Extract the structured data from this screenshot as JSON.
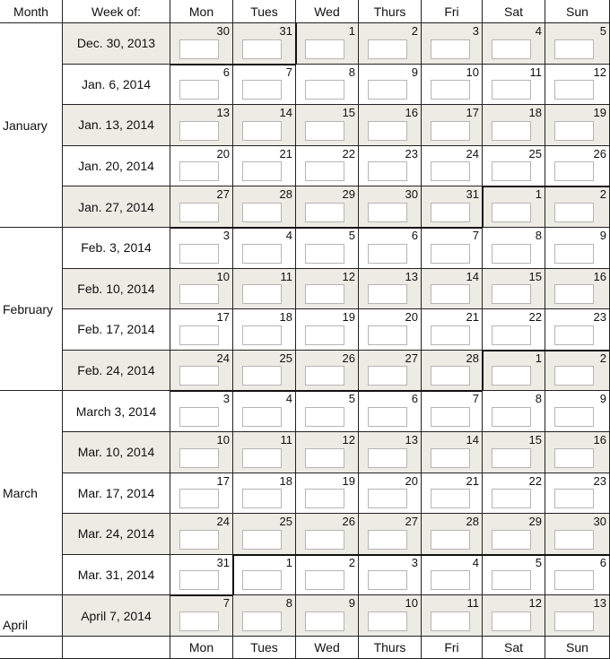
{
  "header": {
    "month": "Month",
    "week_of": "Week of:",
    "days": [
      "Mon",
      "Tues",
      "Wed",
      "Thurs",
      "Fri",
      "Sat",
      "Sun"
    ]
  },
  "footer": {
    "days": [
      "Mon",
      "Tues",
      "Wed",
      "Thurs",
      "Fri",
      "Sat",
      "Sun"
    ]
  },
  "months": [
    {
      "label": "January",
      "rows": 5
    },
    {
      "label": "February",
      "rows": 4
    },
    {
      "label": "March",
      "rows": 5
    },
    {
      "label": "April",
      "rows": 1
    }
  ],
  "weeks": [
    {
      "label": "Dec. 30, 2013",
      "days": [
        30,
        31,
        1,
        2,
        3,
        4,
        5
      ]
    },
    {
      "label": "Jan. 6, 2014",
      "days": [
        6,
        7,
        8,
        9,
        10,
        11,
        12
      ]
    },
    {
      "label": "Jan. 13, 2014",
      "days": [
        13,
        14,
        15,
        16,
        17,
        18,
        19
      ]
    },
    {
      "label": "Jan. 20, 2014",
      "days": [
        20,
        21,
        22,
        23,
        24,
        25,
        26
      ]
    },
    {
      "label": "Jan. 27, 2014",
      "days": [
        27,
        28,
        29,
        30,
        31,
        1,
        2
      ]
    },
    {
      "label": "Feb. 3, 2014",
      "days": [
        3,
        4,
        5,
        6,
        7,
        8,
        9
      ]
    },
    {
      "label": "Feb. 10, 2014",
      "days": [
        10,
        11,
        12,
        13,
        14,
        15,
        16
      ]
    },
    {
      "label": "Feb. 17, 2014",
      "days": [
        17,
        18,
        19,
        20,
        21,
        22,
        23
      ]
    },
    {
      "label": "Feb. 24, 2014",
      "days": [
        24,
        25,
        26,
        27,
        28,
        1,
        2
      ]
    },
    {
      "label": "March 3, 2014",
      "days": [
        3,
        4,
        5,
        6,
        7,
        8,
        9
      ]
    },
    {
      "label": "Mar. 10, 2014",
      "days": [
        10,
        11,
        12,
        13,
        14,
        15,
        16
      ]
    },
    {
      "label": "Mar. 17, 2014",
      "days": [
        17,
        18,
        19,
        20,
        21,
        22,
        23
      ]
    },
    {
      "label": "Mar. 24, 2014",
      "days": [
        24,
        25,
        26,
        27,
        28,
        29,
        30
      ]
    },
    {
      "label": "Mar. 31, 2014",
      "days": [
        31,
        1,
        2,
        3,
        4,
        5,
        6
      ]
    },
    {
      "label": "April 7, 2014",
      "days": [
        7,
        8,
        9,
        10,
        11,
        12,
        13
      ]
    }
  ],
  "colors": {
    "shade": "#ecebe4",
    "border": "#222222",
    "input_border": "#b5b5b5"
  }
}
